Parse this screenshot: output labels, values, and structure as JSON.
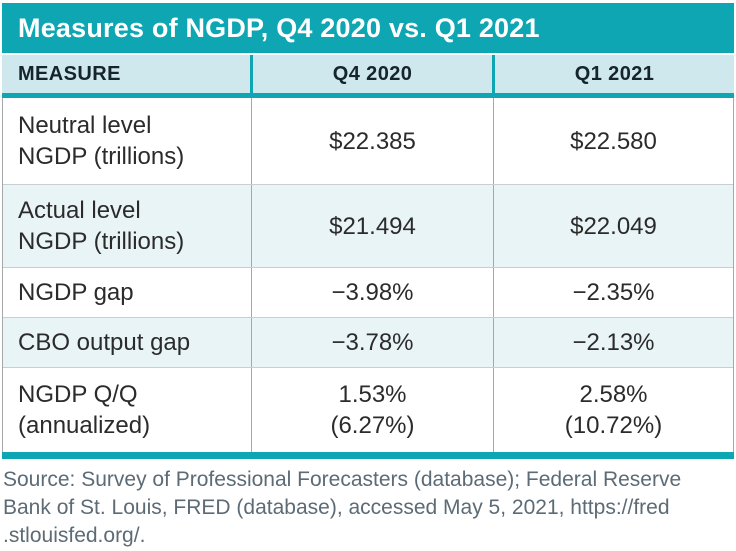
{
  "colors": {
    "teal": "#0DA6B2",
    "header_row_bg": "#CFE8EE",
    "alt_row_bg": "#E9F4F6",
    "body_text": "#2B2B2B",
    "source_text": "#5C6B75"
  },
  "table": {
    "title": "Measures of NGDP, Q4 2020 vs. Q1 2021",
    "columns": [
      "MEASURE",
      "Q4 2020",
      "Q1 2021"
    ],
    "rows": [
      {
        "measure": "Neutral level NGDP (trillions)",
        "q4": "$22.385",
        "q1": "$22.580"
      },
      {
        "measure": "Actual level NGDP (trillions)",
        "q4": "$21.494",
        "q1": "$22.049"
      },
      {
        "measure": "NGDP gap",
        "q4": "−3.98%",
        "q1": "−2.35%"
      },
      {
        "measure": "CBO output gap",
        "q4": "−3.78%",
        "q1": "−2.13%"
      },
      {
        "measure": "NGDP Q/Q (annualized)",
        "q4": "1.53%",
        "q4_sub": "(6.27%)",
        "q1": "2.58%",
        "q1_sub": "(10.72%)"
      }
    ]
  },
  "source": {
    "lines": [
      "Source: Survey of Professional Forecasters (database); Federal Reserve",
      "Bank of St. Louis, FRED (database), accessed May 5, 2021, https://fred",
      ".stlouisfed.org/."
    ]
  },
  "chart_data": {
    "type": "table",
    "title": "Measures of NGDP, Q4 2020 vs. Q1 2021",
    "columns": [
      "MEASURE",
      "Q4 2020",
      "Q1 2021"
    ],
    "rows": [
      [
        "Neutral level NGDP (trillions)",
        "$22.385",
        "$22.580"
      ],
      [
        "Actual level NGDP (trillions)",
        "$21.494",
        "$22.049"
      ],
      [
        "NGDP gap",
        "−3.98%",
        "−2.35%"
      ],
      [
        "CBO output gap",
        "−3.78%",
        "−2.13%"
      ],
      [
        "NGDP Q/Q (annualized)",
        "1.53% (6.27%)",
        "2.58% (10.72%)"
      ]
    ],
    "source_note": "Source: Survey of Professional Forecasters (database); Federal Reserve Bank of St. Louis, FRED (database), accessed May 5, 2021, https://fred.stlouisfed.org/."
  }
}
